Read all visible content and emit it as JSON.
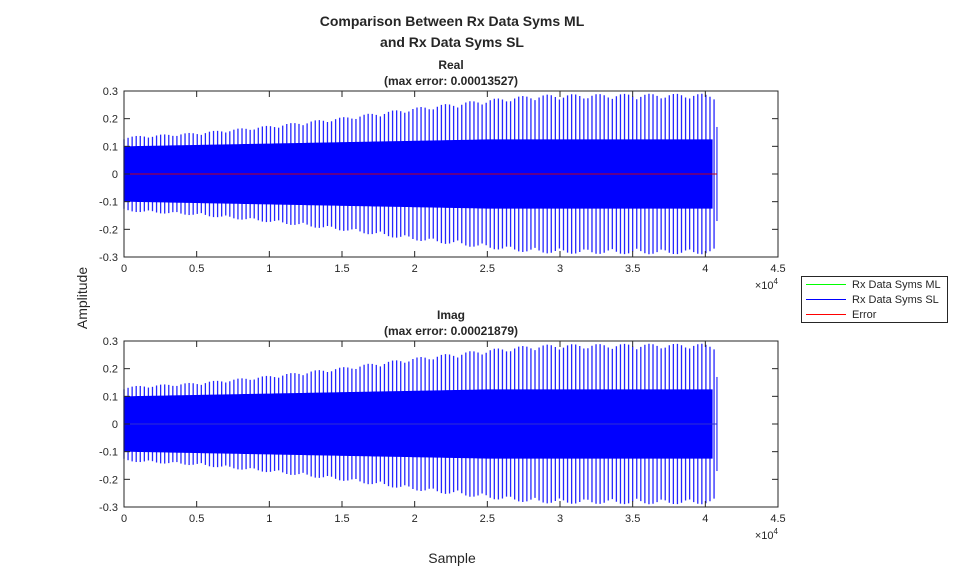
{
  "chart_data": [
    {
      "type": "line",
      "title": "Real",
      "subtitle": "(max error: 0.00013527)",
      "xlabel": "",
      "ylabel": "",
      "xlim": [
        0,
        45000
      ],
      "ylim": [
        -0.3,
        0.3
      ],
      "x_exponent": "×10",
      "x_exponent_power": "4",
      "xticks": [
        "0",
        "0.5",
        "1",
        "1.5",
        "2",
        "2.5",
        "3",
        "3.5",
        "4",
        "4.5"
      ],
      "yticks": [
        "0.3",
        "0.2",
        "0.1",
        "0",
        "-0.1",
        "-0.2",
        "-0.3"
      ],
      "envelope": {
        "x": [
          0,
          5000,
          10000,
          15000,
          20000,
          25000,
          28000,
          30000,
          35000,
          40000,
          40700
        ],
        "peak": [
          0.135,
          0.15,
          0.175,
          0.205,
          0.24,
          0.27,
          0.285,
          0.288,
          0.29,
          0.29,
          0.29
        ],
        "core": [
          0.1,
          0.105,
          0.11,
          0.115,
          0.12,
          0.125,
          0.125,
          0.125,
          0.125,
          0.125,
          0.125
        ]
      },
      "signal_end": 40800,
      "error_max": 0.00013527
    },
    {
      "type": "line",
      "title": "Imag",
      "subtitle": "(max error: 0.00021879)",
      "xlabel": "Sample",
      "ylabel": "",
      "xlim": [
        0,
        45000
      ],
      "ylim": [
        -0.3,
        0.3
      ],
      "x_exponent": "×10",
      "x_exponent_power": "4",
      "xticks": [
        "0",
        "0.5",
        "1",
        "1.5",
        "2",
        "2.5",
        "3",
        "3.5",
        "4",
        "4.5"
      ],
      "yticks": [
        "0.3",
        "0.2",
        "0.1",
        "0",
        "-0.1",
        "-0.2",
        "-0.3"
      ],
      "envelope": {
        "x": [
          0,
          5000,
          10000,
          15000,
          20000,
          25000,
          28000,
          30000,
          35000,
          40000,
          40700
        ],
        "peak": [
          0.135,
          0.15,
          0.175,
          0.205,
          0.24,
          0.27,
          0.285,
          0.288,
          0.29,
          0.29,
          0.29
        ],
        "core": [
          0.1,
          0.105,
          0.11,
          0.115,
          0.12,
          0.125,
          0.125,
          0.125,
          0.125,
          0.125,
          0.125
        ]
      },
      "signal_end": 40800,
      "error_max": 0.00021879
    }
  ],
  "figure": {
    "title_line1": "Comparison Between Rx Data Syms ML",
    "title_line2": "and Rx Data Syms SL",
    "ylabel": "Amplitude"
  },
  "legend": {
    "placement": "right",
    "items": [
      {
        "label": "Rx Data Syms ML",
        "color": "#00ff00"
      },
      {
        "label": "Rx Data Syms SL",
        "color": "#0000ff"
      },
      {
        "label": "Error",
        "color": "#ff0000"
      }
    ]
  }
}
